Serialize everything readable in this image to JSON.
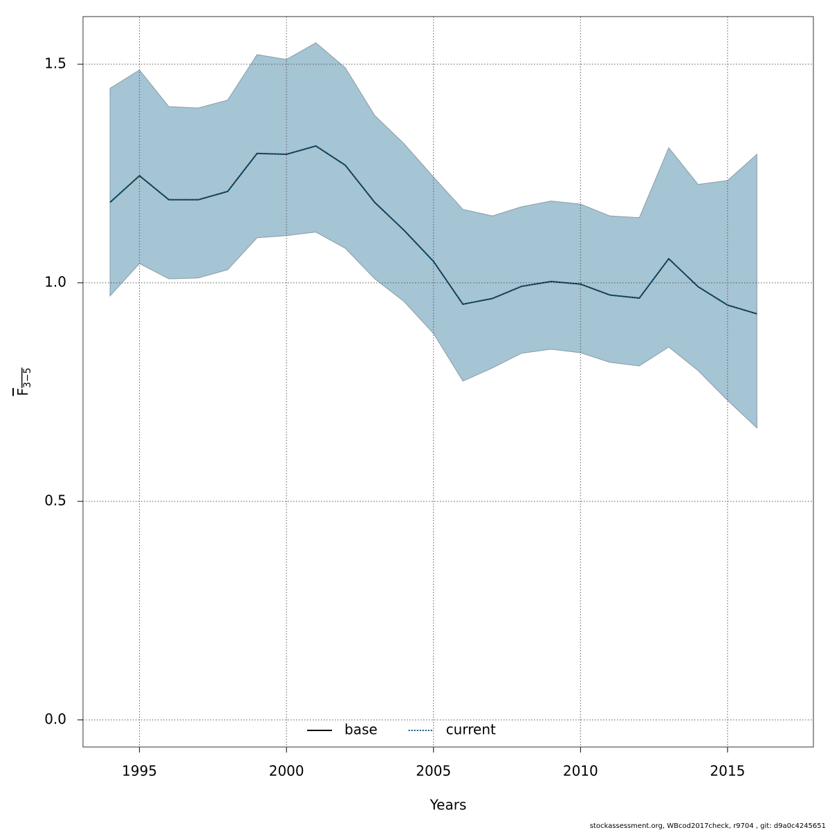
{
  "chart_data": {
    "type": "line",
    "xlabel": "Years",
    "ylabel": {
      "symbol": "F",
      "subscript": "3−5"
    },
    "x": [
      1994,
      1995,
      1996,
      1997,
      1998,
      1999,
      2000,
      2001,
      2002,
      2003,
      2004,
      2005,
      2006,
      2007,
      2008,
      2009,
      2010,
      2011,
      2012,
      2013,
      2014,
      2015,
      2016
    ],
    "series": [
      {
        "name": "current",
        "color": "#00537a",
        "values": [
          1.184,
          1.245,
          1.19,
          1.19,
          1.209,
          1.296,
          1.294,
          1.313,
          1.269,
          1.184,
          1.12,
          1.049,
          0.951,
          0.964,
          0.992,
          1.003,
          0.997,
          0.972,
          0.965,
          1.055,
          0.991,
          0.949,
          0.929
        ],
        "upper": [
          1.445,
          1.487,
          1.403,
          1.4,
          1.418,
          1.522,
          1.511,
          1.549,
          1.492,
          1.383,
          1.318,
          1.242,
          1.168,
          1.153,
          1.174,
          1.187,
          1.18,
          1.153,
          1.149,
          1.309,
          1.225,
          1.234,
          1.294
        ],
        "lower": [
          0.97,
          1.044,
          1.009,
          1.011,
          1.03,
          1.103,
          1.108,
          1.116,
          1.079,
          1.009,
          0.957,
          0.884,
          0.775,
          0.805,
          0.839,
          0.848,
          0.84,
          0.818,
          0.81,
          0.853,
          0.799,
          0.731,
          0.668
        ],
        "band_color": "#a5c4d4"
      }
    ],
    "legend": [
      {
        "name": "base",
        "color": "#000000",
        "dash": "solid"
      },
      {
        "name": "current",
        "color": "#00537a",
        "dash": "dotted"
      }
    ],
    "legend_position": "bottom",
    "xlim": [
      1993.08,
      2017.92
    ],
    "ylim": [
      -0.062,
      1.609
    ],
    "xticks": [
      1995,
      2000,
      2005,
      2010,
      2015
    ],
    "yticks": [
      {
        "value": 0,
        "label": "0.0"
      },
      0.5,
      {
        "value": 1,
        "label": "1.0"
      },
      1.5
    ],
    "grid": true,
    "footnote": "stockassessment.org, WBcod2017check, r9704 , git: d9a0c4245651"
  }
}
